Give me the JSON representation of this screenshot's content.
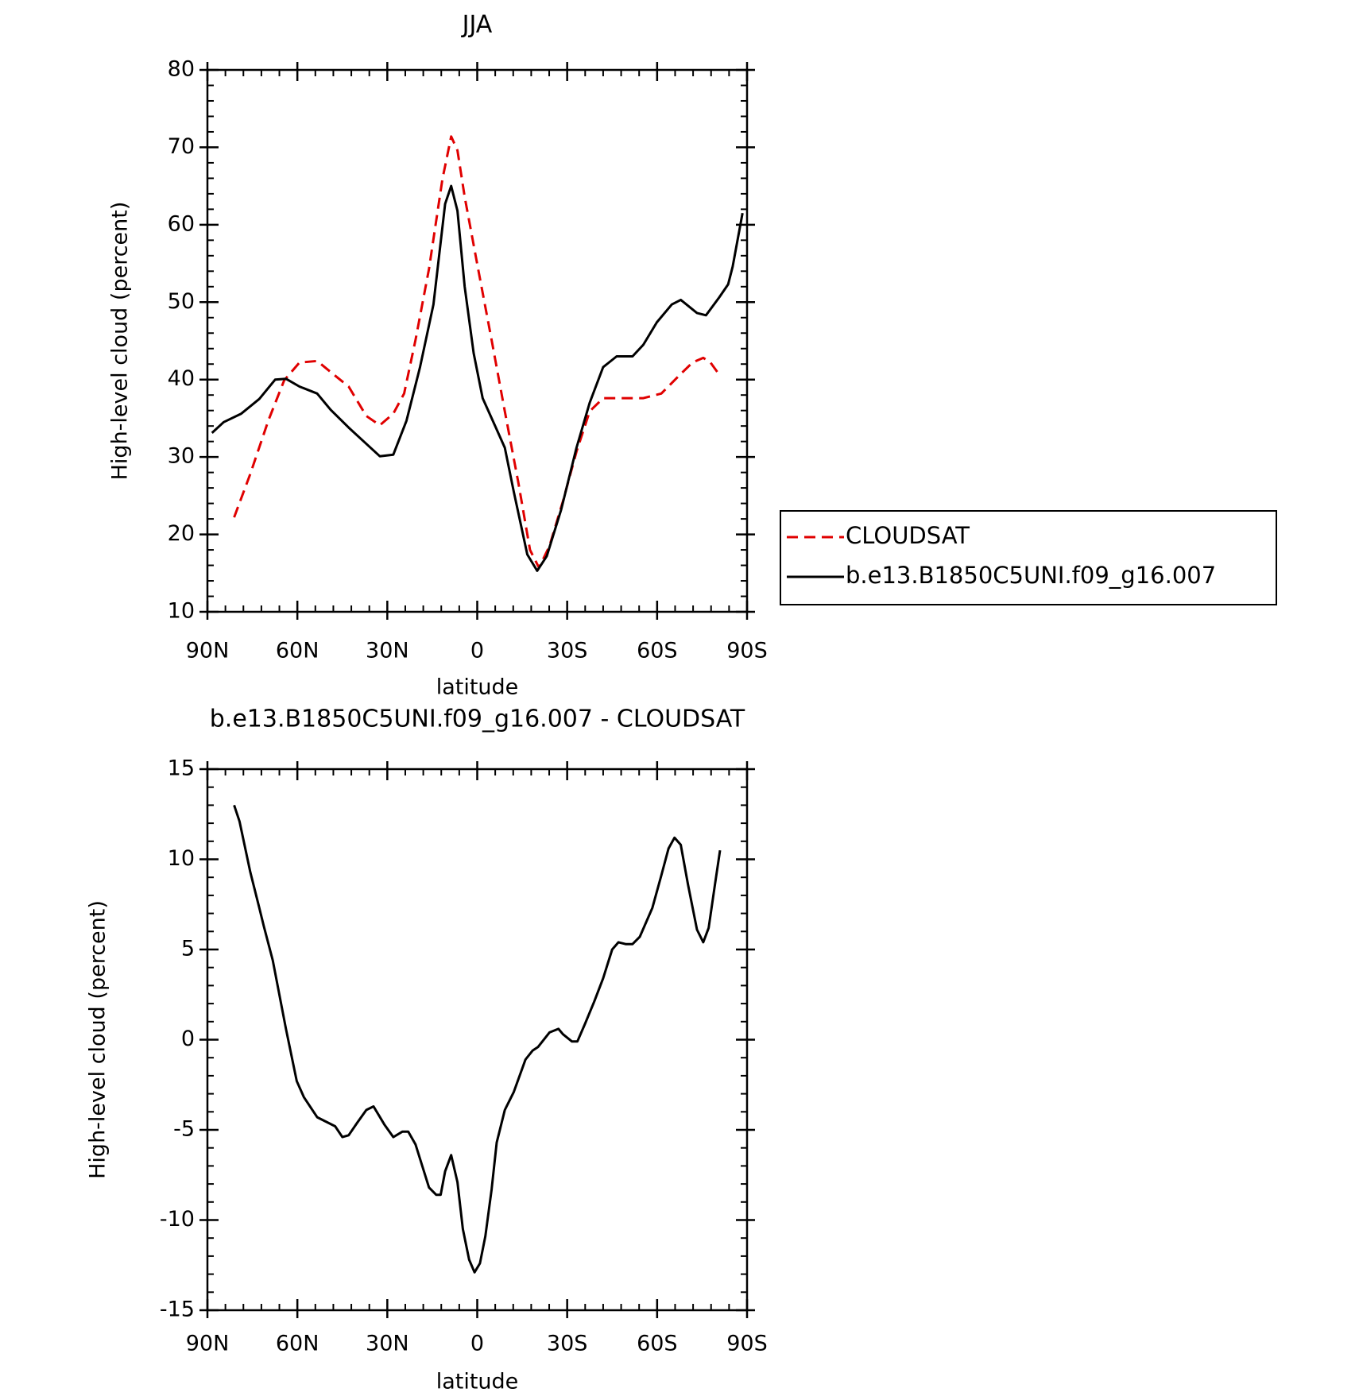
{
  "chart_data": [
    {
      "type": "line",
      "title": "JJA",
      "x_label": "latitude",
      "y_label": "High-level cloud (percent)",
      "xlim": [
        90,
        -90
      ],
      "xticks": [
        {
          "value": 90,
          "label": "90N"
        },
        {
          "value": 60,
          "label": "60N"
        },
        {
          "value": 30,
          "label": "30N"
        },
        0,
        {
          "value": -30,
          "label": "30S"
        },
        {
          "value": -60,
          "label": "60S"
        },
        {
          "value": -90,
          "label": "90S"
        }
      ],
      "ylim": [
        10,
        80
      ],
      "yticks": [
        10,
        20,
        30,
        40,
        50,
        60,
        70,
        80
      ],
      "legend": "right",
      "series": [
        {
          "name": "CLOUDSAT",
          "color": "#e00000",
          "dash": true,
          "x": [
            81.1,
            75.7,
            69.7,
            64.4,
            59.3,
            53.4,
            47.4,
            42.9,
            37.0,
            32.5,
            28.0,
            24.4,
            20.6,
            16.1,
            11.6,
            8.7,
            6.6,
            4.2,
            -0.3,
            -4.8,
            -9.2,
            -13.7,
            -17.6,
            -20.6,
            -24.1,
            -28.6,
            -33.1,
            -37.5,
            -42.0,
            -48.0,
            -55.4,
            -61.4,
            -67.3,
            -71.8,
            -75.4,
            -77.8,
            -81.0
          ],
          "values": [
            22.2,
            27.8,
            34.7,
            39.9,
            42.2,
            42.4,
            40.5,
            39.1,
            35.3,
            34.1,
            35.6,
            38.2,
            45.1,
            54.3,
            65.9,
            71.4,
            69.6,
            63.6,
            54.3,
            45.1,
            35.9,
            26.7,
            18.0,
            15.7,
            18.5,
            24.3,
            30.7,
            35.9,
            37.6,
            37.6,
            37.6,
            38.2,
            40.5,
            42.2,
            42.8,
            42.2,
            40.5
          ]
        },
        {
          "name": "b.e13.B1850C5UNI.f09_g16.007",
          "color": "#000000",
          "dash": false,
          "x": [
            88.5,
            84.6,
            78.7,
            72.7,
            67.4,
            63.8,
            59.3,
            53.4,
            48.9,
            42.9,
            38.4,
            32.5,
            28.0,
            23.6,
            19.1,
            14.6,
            10.7,
            8.7,
            6.6,
            4.2,
            1.2,
            -1.8,
            -6.2,
            -9.2,
            -12.2,
            -16.7,
            -20.0,
            -23.2,
            -28.0,
            -33.1,
            -37.5,
            -42.0,
            -46.5,
            -51.8,
            -55.4,
            -59.9,
            -64.9,
            -67.9,
            -73.3,
            -76.3,
            -80.7,
            -83.7,
            -85.2,
            -88.5
          ],
          "values": [
            33.1,
            34.5,
            35.6,
            37.5,
            40.0,
            40.1,
            39.1,
            38.2,
            36.1,
            33.8,
            32.2,
            30.1,
            30.3,
            34.7,
            41.6,
            49.7,
            62.7,
            65.0,
            61.8,
            52.0,
            43.4,
            37.6,
            33.8,
            31.2,
            25.5,
            17.4,
            15.3,
            17.2,
            23.2,
            31.2,
            37.0,
            41.6,
            43.0,
            43.0,
            44.5,
            47.4,
            49.7,
            50.3,
            48.6,
            48.3,
            50.6,
            52.3,
            54.6,
            61.5
          ]
        }
      ]
    },
    {
      "type": "line",
      "title": "b.e13.B1850C5UNI.f09_g16.007 - CLOUDSAT",
      "x_label": "latitude",
      "y_label": "High-level cloud (percent)",
      "xlim": [
        90,
        -90
      ],
      "xticks": [
        {
          "value": 90,
          "label": "90N"
        },
        {
          "value": 60,
          "label": "60N"
        },
        {
          "value": 30,
          "label": "30N"
        },
        0,
        {
          "value": -30,
          "label": "30S"
        },
        {
          "value": -60,
          "label": "60S"
        },
        {
          "value": -90,
          "label": "90S"
        }
      ],
      "ylim": [
        -15,
        15
      ],
      "yticks": [
        -15,
        -10,
        -5,
        0,
        5,
        10,
        15
      ],
      "series": [
        {
          "color": "#000000",
          "dash": false,
          "x": [
            81.1,
            79.3,
            75.7,
            72.7,
            71.2,
            68.2,
            63.8,
            60.2,
            57.8,
            53.4,
            47.4,
            45.0,
            42.9,
            40.0,
            37.0,
            34.6,
            31.0,
            28.0,
            25.0,
            23.0,
            20.6,
            16.1,
            13.7,
            12.2,
            10.7,
            8.7,
            6.6,
            4.8,
            2.7,
            0.9,
            -0.9,
            -2.7,
            -4.8,
            -6.5,
            -9.2,
            -12.2,
            -16.1,
            -18.5,
            -20.3,
            -24.1,
            -27.1,
            -28.6,
            -31.6,
            -33.4,
            -36.0,
            -39.0,
            -42.0,
            -45.0,
            -47.1,
            -49.5,
            -51.8,
            -54.2,
            -58.4,
            -61.4,
            -63.8,
            -65.8,
            -67.9,
            -70.3,
            -73.3,
            -75.4,
            -77.2,
            -79.3,
            -81.0
          ],
          "values": [
            13.0,
            12.1,
            9.3,
            7.3,
            6.3,
            4.4,
            0.6,
            -2.3,
            -3.2,
            -4.3,
            -4.8,
            -5.4,
            -5.3,
            -4.6,
            -3.9,
            -3.7,
            -4.7,
            -5.4,
            -5.1,
            -5.1,
            -5.8,
            -8.2,
            -8.6,
            -8.6,
            -7.3,
            -6.4,
            -7.9,
            -10.5,
            -12.2,
            -12.9,
            -12.4,
            -10.9,
            -8.3,
            -5.7,
            -3.9,
            -2.9,
            -1.1,
            -0.6,
            -0.4,
            0.4,
            0.6,
            0.3,
            -0.1,
            -0.1,
            0.9,
            2.1,
            3.4,
            5.0,
            5.4,
            5.3,
            5.3,
            5.7,
            7.3,
            9.1,
            10.6,
            11.2,
            10.8,
            8.6,
            6.1,
            5.4,
            6.2,
            8.6,
            10.5
          ]
        }
      ]
    }
  ]
}
